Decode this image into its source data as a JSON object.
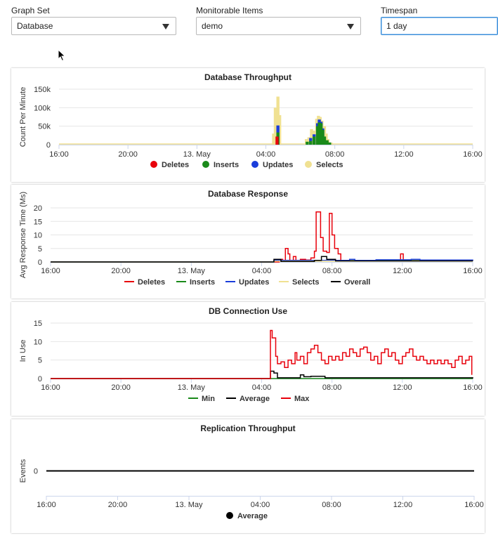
{
  "controls": {
    "graph_set": {
      "label": "Graph Set",
      "value": "Database"
    },
    "monitorable_items": {
      "label": "Monitorable Items",
      "value": "demo"
    },
    "timespan": {
      "label": "Timespan",
      "value": "1 day"
    }
  },
  "chart_data": [
    {
      "type": "bar",
      "title": "Database Throughput",
      "xlabel": "",
      "ylabel": "Count Per Minute",
      "x_ticks": [
        "16:00",
        "20:00",
        "13. May",
        "04:00",
        "08:00",
        "12:00",
        "16:00"
      ],
      "y_ticks": [
        "0",
        "50k",
        "100k",
        "150k"
      ],
      "ylim": [
        0,
        150000
      ],
      "x_range_hours": [
        0,
        24
      ],
      "series": [
        {
          "name": "Deletes",
          "color": "#e8000b",
          "points": [
            [
              12.65,
              22000
            ]
          ]
        },
        {
          "name": "Inserts",
          "color": "#1a8a1a",
          "points": [
            [
              12.7,
              33000
            ],
            [
              14.4,
              8000
            ],
            [
              14.6,
              10000
            ],
            [
              14.8,
              22000
            ],
            [
              15.0,
              50000
            ],
            [
              15.1,
              60000
            ],
            [
              15.2,
              58000
            ],
            [
              15.3,
              40000
            ],
            [
              15.4,
              22000
            ],
            [
              15.55,
              12000
            ],
            [
              15.7,
              6000
            ]
          ]
        },
        {
          "name": "Updates",
          "color": "#1a3ddb",
          "points": [
            [
              12.7,
              52000
            ],
            [
              14.6,
              18000
            ],
            [
              14.8,
              28000
            ],
            [
              15.0,
              58000
            ],
            [
              15.1,
              68000
            ],
            [
              15.2,
              62000
            ],
            [
              15.3,
              44000
            ]
          ]
        },
        {
          "name": "Selects",
          "color": "#f0e192",
          "points": [
            [
              12.45,
              30000
            ],
            [
              12.55,
              100000
            ],
            [
              12.6,
              95000
            ],
            [
              12.7,
              130000
            ],
            [
              12.8,
              80000
            ],
            [
              14.35,
              15000
            ],
            [
              14.5,
              20000
            ],
            [
              14.65,
              42000
            ],
            [
              14.8,
              38000
            ],
            [
              14.95,
              70000
            ],
            [
              15.05,
              78000
            ],
            [
              15.15,
              75000
            ],
            [
              15.25,
              65000
            ],
            [
              15.4,
              50000
            ],
            [
              15.5,
              30000
            ],
            [
              15.6,
              15000
            ],
            [
              15.8,
              5000
            ]
          ]
        }
      ],
      "legend": [
        "Deletes",
        "Inserts",
        "Updates",
        "Selects"
      ],
      "legend_position": "bottom",
      "legend_symbol": "circle"
    },
    {
      "type": "line",
      "title": "Database Response",
      "xlabel": "",
      "ylabel": "Avg Response Time (Ms)",
      "x_ticks": [
        "16:00",
        "20:00",
        "13. May",
        "04:00",
        "08:00",
        "12:00",
        "16:00"
      ],
      "y_ticks": [
        "0",
        "5",
        "10",
        "15",
        "20"
      ],
      "ylim": [
        0,
        20
      ],
      "x_range_hours": [
        0,
        24
      ],
      "step": true,
      "series": [
        {
          "name": "Deletes",
          "color": "#e8000b",
          "points": [
            [
              0,
              0
            ],
            [
              12.9,
              0
            ],
            [
              13.0,
              1.0
            ],
            [
              13.2,
              0.5
            ],
            [
              13.35,
              5
            ],
            [
              13.5,
              3
            ],
            [
              13.6,
              0.5
            ],
            [
              13.8,
              2
            ],
            [
              13.95,
              0.4
            ],
            [
              14.2,
              1.0
            ],
            [
              14.5,
              0.7
            ],
            [
              14.8,
              1.5
            ],
            [
              15.0,
              4
            ],
            [
              15.1,
              18.5
            ],
            [
              15.35,
              9
            ],
            [
              15.5,
              4
            ],
            [
              15.7,
              3.5
            ],
            [
              15.85,
              18
            ],
            [
              16.0,
              10
            ],
            [
              16.15,
              5
            ],
            [
              16.35,
              3
            ],
            [
              16.5,
              0.5
            ],
            [
              17.0,
              0.5
            ],
            [
              19.8,
              0.5
            ],
            [
              19.9,
              3
            ],
            [
              20.05,
              0.5
            ],
            [
              24,
              0.5
            ]
          ]
        },
        {
          "name": "Inserts",
          "color": "#1a8a1a",
          "points": [
            [
              0,
              0
            ],
            [
              12.6,
              0
            ],
            [
              12.7,
              0.5
            ],
            [
              24,
              0.5
            ]
          ]
        },
        {
          "name": "Updates",
          "color": "#1a3ddb",
          "points": [
            [
              0,
              0
            ],
            [
              12.6,
              0
            ],
            [
              12.7,
              0.6
            ],
            [
              17.0,
              1.0
            ],
            [
              17.3,
              0.6
            ],
            [
              18.5,
              0.8
            ],
            [
              20.5,
              1.0
            ],
            [
              21.0,
              0.7
            ],
            [
              24,
              0.6
            ]
          ]
        },
        {
          "name": "Selects",
          "color": "#f0e192",
          "points": [
            [
              0,
              0
            ],
            [
              12.6,
              0
            ],
            [
              12.7,
              0.3
            ],
            [
              24,
              0.3
            ]
          ]
        },
        {
          "name": "Overall",
          "color": "#000000",
          "points": [
            [
              0,
              0
            ],
            [
              12.6,
              0
            ],
            [
              12.7,
              1.0
            ],
            [
              13.1,
              0.2
            ],
            [
              15.0,
              0.6
            ],
            [
              15.4,
              2.0
            ],
            [
              15.7,
              1.0
            ],
            [
              16.2,
              0.4
            ],
            [
              24,
              0.3
            ]
          ]
        }
      ],
      "legend": [
        "Deletes",
        "Inserts",
        "Updates",
        "Selects",
        "Overall"
      ],
      "legend_position": "bottom",
      "legend_symbol": "line"
    },
    {
      "type": "line",
      "title": "DB Connection Use",
      "xlabel": "",
      "ylabel": "In Use",
      "x_ticks": [
        "16:00",
        "20:00",
        "13. May",
        "04:00",
        "08:00",
        "12:00",
        "16:00"
      ],
      "y_ticks": [
        "0",
        "5",
        "10",
        "15"
      ],
      "ylim": [
        0,
        15
      ],
      "x_range_hours": [
        0,
        24
      ],
      "step": true,
      "series": [
        {
          "name": "Min",
          "color": "#1a8a1a",
          "points": [
            [
              0,
              0
            ],
            [
              24,
              0
            ]
          ]
        },
        {
          "name": "Average",
          "color": "#000000",
          "points": [
            [
              0,
              0
            ],
            [
              12.45,
              0
            ],
            [
              12.5,
              2
            ],
            [
              12.7,
              1.5
            ],
            [
              12.9,
              0.2
            ],
            [
              14.0,
              0.2
            ],
            [
              14.2,
              1
            ],
            [
              14.4,
              0.5
            ],
            [
              14.8,
              0.6
            ],
            [
              15.6,
              0.2
            ],
            [
              24,
              0
            ]
          ]
        },
        {
          "name": "Max",
          "color": "#e8000b",
          "points": [
            [
              0,
              0
            ],
            [
              12.45,
              0
            ],
            [
              12.5,
              13
            ],
            [
              12.6,
              11
            ],
            [
              12.8,
              6
            ],
            [
              12.9,
              4
            ],
            [
              13.1,
              4.5
            ],
            [
              13.3,
              3
            ],
            [
              13.5,
              5
            ],
            [
              13.7,
              4
            ],
            [
              13.9,
              7
            ],
            [
              14.0,
              5
            ],
            [
              14.2,
              6
            ],
            [
              14.4,
              4
            ],
            [
              14.6,
              7
            ],
            [
              14.8,
              8
            ],
            [
              15.0,
              9
            ],
            [
              15.2,
              7
            ],
            [
              15.4,
              5
            ],
            [
              15.6,
              4
            ],
            [
              15.8,
              6
            ],
            [
              16.0,
              5
            ],
            [
              16.2,
              6
            ],
            [
              16.4,
              5
            ],
            [
              16.6,
              7
            ],
            [
              16.8,
              6
            ],
            [
              17.0,
              8
            ],
            [
              17.2,
              7
            ],
            [
              17.4,
              6
            ],
            [
              17.6,
              8
            ],
            [
              17.8,
              8.5
            ],
            [
              18.0,
              7
            ],
            [
              18.2,
              5
            ],
            [
              18.4,
              6
            ],
            [
              18.6,
              4
            ],
            [
              18.8,
              7
            ],
            [
              19.0,
              8
            ],
            [
              19.2,
              6
            ],
            [
              19.4,
              7
            ],
            [
              19.6,
              5
            ],
            [
              19.8,
              4
            ],
            [
              20.0,
              6
            ],
            [
              20.2,
              7
            ],
            [
              20.4,
              8
            ],
            [
              20.6,
              6
            ],
            [
              20.8,
              5
            ],
            [
              21.0,
              6
            ],
            [
              21.2,
              5
            ],
            [
              21.4,
              4
            ],
            [
              21.6,
              5
            ],
            [
              21.8,
              4
            ],
            [
              22.0,
              5
            ],
            [
              22.2,
              4
            ],
            [
              22.4,
              5
            ],
            [
              22.6,
              4
            ],
            [
              22.8,
              3
            ],
            [
              23.0,
              5
            ],
            [
              23.2,
              6
            ],
            [
              23.4,
              4
            ],
            [
              23.6,
              5
            ],
            [
              23.8,
              6
            ],
            [
              23.95,
              1
            ]
          ]
        }
      ],
      "legend": [
        "Min",
        "Average",
        "Max"
      ],
      "legend_position": "bottom",
      "legend_symbol": "line"
    },
    {
      "type": "line",
      "title": "Replication Throughput",
      "xlabel": "",
      "ylabel": "Events",
      "x_ticks": [
        "16:00",
        "20:00",
        "13. May",
        "04:00",
        "08:00",
        "12:00",
        "16:00"
      ],
      "y_ticks": [
        "0"
      ],
      "ylim": [
        -1,
        1
      ],
      "x_range_hours": [
        0,
        24
      ],
      "series": [
        {
          "name": "Average",
          "color": "#000000",
          "points": [
            [
              0,
              0
            ],
            [
              24,
              0
            ]
          ]
        }
      ],
      "legend": [
        "Average"
      ],
      "legend_position": "bottom",
      "legend_symbol": "circle"
    }
  ]
}
